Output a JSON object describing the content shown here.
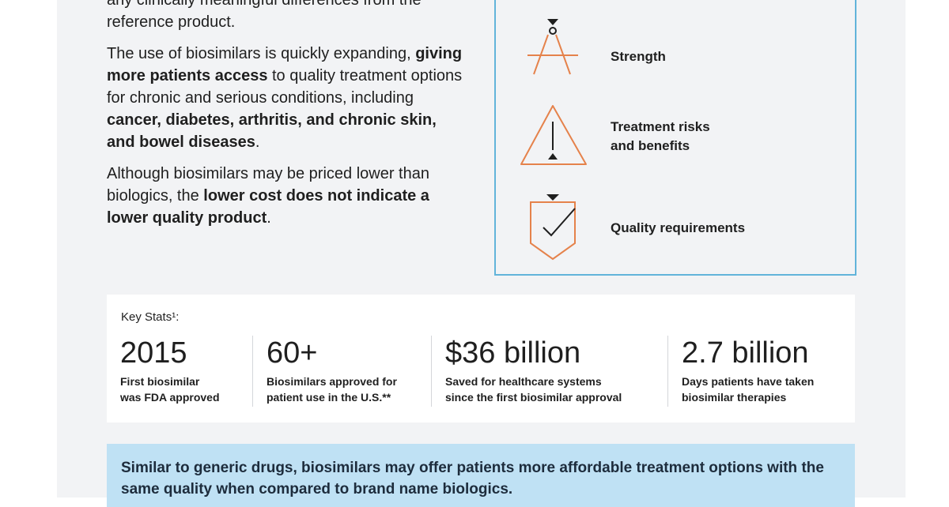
{
  "left": {
    "paragraphs": [
      {
        "parts": [
          "any clinically meaningful differences from the reference product."
        ]
      },
      {
        "parts": [
          "The use of biosimilars is quickly expanding, ",
          "giving more patients access",
          " to quality treatment options for chronic and serious conditions, including ",
          "cancer, diabetes, arthritis, and chronic skin, and bowel diseases",
          "."
        ]
      },
      {
        "parts": [
          "Although biosimilars may be priced lower than biologics, the ",
          "lower cost does not indicate a lower quality product",
          "."
        ]
      }
    ]
  },
  "features": [
    {
      "lines": [
        "Strength"
      ]
    },
    {
      "lines": [
        "Treatment risks",
        "and benefits"
      ]
    },
    {
      "lines": [
        "Quality requirements"
      ]
    }
  ],
  "stats": {
    "heading": "Key Stats¹:",
    "items": [
      {
        "value": "2015",
        "lines": [
          "First biosimilar",
          "was FDA approved"
        ]
      },
      {
        "value": "60+",
        "lines": [
          "Biosimilars approved for",
          "patient use in the U.S.**"
        ]
      },
      {
        "value": "$36 billion",
        "lines": [
          "Saved for healthcare systems",
          "since the first biosimilar approval"
        ]
      },
      {
        "value": "2.7 billion",
        "lines": [
          "Days patients have taken",
          "biosimilar therapies"
        ]
      }
    ]
  },
  "callout": {
    "text": "Similar to generic drugs, biosimilars may offer patients more affordable treatment options with the same quality when compared to brand name biologics."
  }
}
